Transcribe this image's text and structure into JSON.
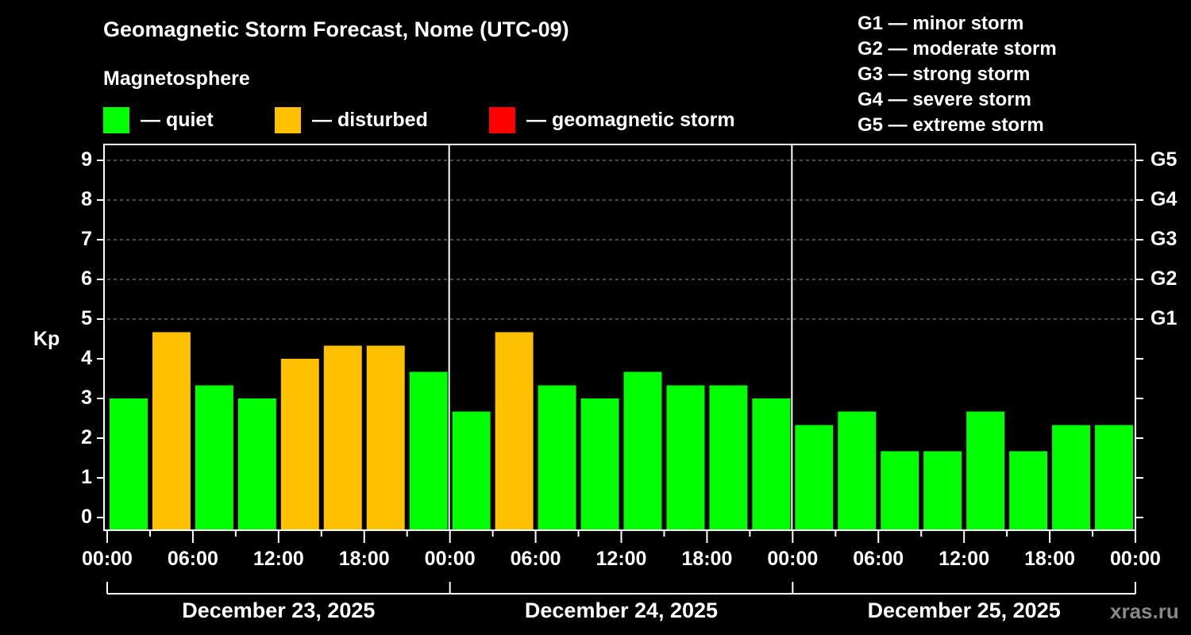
{
  "header": {
    "title": "Geomagnetic Storm Forecast, Nome (UTC-09)",
    "subtitle": "Magnetosphere"
  },
  "legend": [
    {
      "label": "— quiet",
      "color": "#00ff00"
    },
    {
      "label": "— disturbed",
      "color": "#ffc000"
    },
    {
      "label": "— geomagnetic storm",
      "color": "#ff0000"
    }
  ],
  "gscale": [
    "G1 — minor storm",
    "G2 — moderate storm",
    "G3 — strong storm",
    "G4 — severe storm",
    "G5 — extreme storm"
  ],
  "watermark": "xras.ru",
  "chart_data": {
    "type": "bar",
    "title": "Geomagnetic Storm Forecast, Nome (UTC-09)",
    "xlabel": "",
    "ylabel": "Kp",
    "ylim": [
      0,
      9
    ],
    "yticks": [
      0,
      1,
      2,
      3,
      4,
      5,
      6,
      7,
      8,
      9
    ],
    "right_axis_labels": [
      {
        "kp": 5,
        "label": "G1"
      },
      {
        "kp": 6,
        "label": "G2"
      },
      {
        "kp": 7,
        "label": "G3"
      },
      {
        "kp": 8,
        "label": "G4"
      },
      {
        "kp": 9,
        "label": "G5"
      }
    ],
    "grid": "dashed horizontal at Kp 5-9",
    "xtick_labels": [
      "00:00",
      "06:00",
      "12:00",
      "18:00",
      "00:00",
      "06:00",
      "12:00",
      "18:00",
      "00:00",
      "06:00",
      "12:00",
      "18:00",
      "00:00"
    ],
    "days": [
      "December 23, 2025",
      "December 24, 2025",
      "December 25, 2025"
    ],
    "categories": [
      "Dec 23 00-03",
      "Dec 23 03-06",
      "Dec 23 06-09",
      "Dec 23 09-12",
      "Dec 23 12-15",
      "Dec 23 15-18",
      "Dec 23 18-21",
      "Dec 23 21-24",
      "Dec 24 00-03",
      "Dec 24 03-06",
      "Dec 24 06-09",
      "Dec 24 09-12",
      "Dec 24 12-15",
      "Dec 24 15-18",
      "Dec 24 18-21",
      "Dec 24 21-24",
      "Dec 25 00-03",
      "Dec 25 03-06",
      "Dec 25 06-09",
      "Dec 25 09-12",
      "Dec 25 12-15",
      "Dec 25 15-18",
      "Dec 25 18-21",
      "Dec 25 21-24"
    ],
    "values": [
      3.0,
      4.67,
      3.33,
      3.0,
      4.0,
      4.33,
      4.33,
      3.67,
      2.67,
      4.67,
      3.33,
      3.0,
      3.67,
      3.33,
      3.33,
      3.0,
      2.33,
      2.67,
      1.67,
      1.67,
      2.67,
      1.67,
      2.33,
      2.33
    ],
    "status": [
      "quiet",
      "disturbed",
      "quiet",
      "quiet",
      "disturbed",
      "disturbed",
      "disturbed",
      "quiet",
      "quiet",
      "disturbed",
      "quiet",
      "quiet",
      "quiet",
      "quiet",
      "quiet",
      "quiet",
      "quiet",
      "quiet",
      "quiet",
      "quiet",
      "quiet",
      "quiet",
      "quiet",
      "quiet"
    ]
  }
}
